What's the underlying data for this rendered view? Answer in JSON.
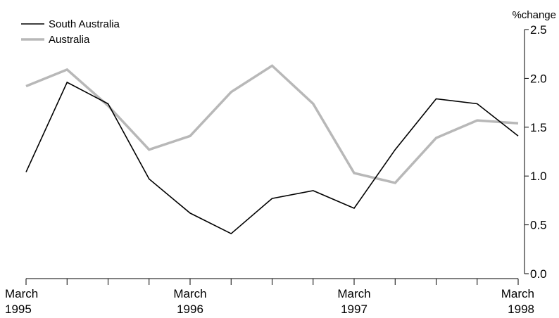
{
  "chart_data": {
    "type": "line",
    "unit_label": "%change",
    "x": [
      "Mar 1995",
      "Jun 1995",
      "Sep 1995",
      "Dec 1995",
      "Mar 1996",
      "Jun 1996",
      "Sep 1996",
      "Dec 1996",
      "Mar 1997",
      "Jun 1997",
      "Sep 1997",
      "Dec 1997",
      "Mar 1998"
    ],
    "x_tick_labels": [
      {
        "index": 0,
        "month": "March",
        "year": "1995"
      },
      {
        "index": 4,
        "month": "March",
        "year": "1996"
      },
      {
        "index": 8,
        "month": "March",
        "year": "1997"
      },
      {
        "index": 12,
        "month": "March",
        "year": "1998"
      }
    ],
    "ylim": [
      0,
      2.5
    ],
    "y_ticks": [
      "0.0",
      "0.5",
      "1.0",
      "1.5",
      "2.0",
      "2.5"
    ],
    "y_axis_side": "right",
    "grid": false,
    "legend_position": "top-left",
    "series": [
      {
        "name": "South Australia",
        "color": "#000000",
        "values": [
          1.04,
          1.96,
          1.74,
          0.97,
          0.62,
          0.41,
          0.77,
          0.85,
          0.67,
          1.27,
          1.79,
          1.74,
          1.41
        ]
      },
      {
        "name": "Australia",
        "color": "#b8b8b8",
        "values": [
          1.92,
          2.09,
          1.72,
          1.27,
          1.41,
          1.86,
          2.13,
          1.74,
          1.03,
          0.93,
          1.39,
          1.57,
          1.54
        ]
      }
    ]
  }
}
